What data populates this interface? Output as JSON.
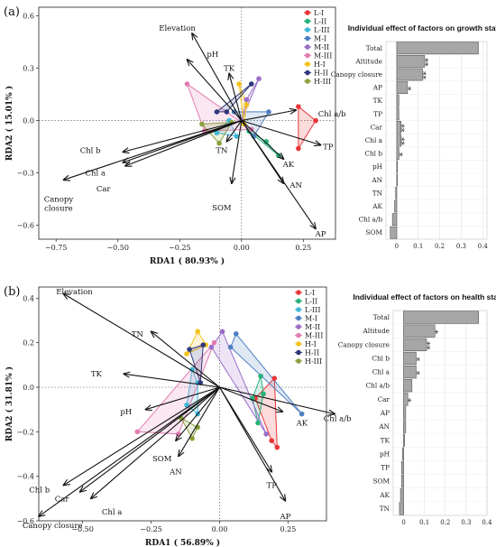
{
  "chart_data": [
    {
      "id": "a-rda",
      "type": "scatter",
      "panel_label": "(a)",
      "xlabel": "RDA1 ( 80.93% )",
      "ylabel": "RDA2 ( 15.01% )",
      "xlim": [
        -0.82,
        0.38
      ],
      "ylim": [
        -0.68,
        0.65
      ],
      "xticks": [
        -0.75,
        -0.5,
        -0.25,
        0.0,
        0.25
      ],
      "xtick_labels": [
        "−0.75",
        "−0.50",
        "−0.25",
        "0.00",
        "0.25"
      ],
      "yticks": [
        -0.6,
        -0.3,
        0.0,
        0.3,
        0.6
      ],
      "ytick_labels": [
        "−0.6",
        "−0.3",
        "0.0",
        "0.3",
        "0.6"
      ],
      "vectors": [
        {
          "label": "Elevation",
          "x": -0.2,
          "y": 0.5,
          "lx": -0.26,
          "ly": 0.53
        },
        {
          "label": "pH",
          "x": -0.22,
          "y": 0.35,
          "lx": -0.14,
          "ly": 0.38
        },
        {
          "label": "TK",
          "x": -0.05,
          "y": 0.27,
          "lx": -0.05,
          "ly": 0.3
        },
        {
          "label": "Chl a/b",
          "x": 0.22,
          "y": 0.06,
          "lx": 0.31,
          "ly": 0.04
        },
        {
          "label": "TP",
          "x": 0.32,
          "y": -0.14,
          "lx": 0.35,
          "ly": -0.15
        },
        {
          "label": "AK",
          "x": 0.17,
          "y": -0.22,
          "lx": 0.19,
          "ly": -0.25
        },
        {
          "label": "AN",
          "x": 0.17,
          "y": -0.36,
          "lx": 0.22,
          "ly": -0.37
        },
        {
          "label": "AP",
          "x": 0.3,
          "y": -0.62,
          "lx": 0.32,
          "ly": -0.65
        },
        {
          "label": "SOM",
          "x": -0.04,
          "y": -0.36,
          "lx": -0.08,
          "ly": -0.5
        },
        {
          "label": "TN",
          "x": -0.06,
          "y": -0.12,
          "lx": -0.08,
          "ly": -0.17
        },
        {
          "label": "Chl b",
          "x": -0.48,
          "y": -0.18,
          "lx": -0.57,
          "ly": -0.17
        },
        {
          "label": "Chl a",
          "x": -0.48,
          "y": -0.24,
          "lx": -0.55,
          "ly": -0.3
        },
        {
          "label": "Car",
          "x": -0.47,
          "y": -0.26,
          "lx": -0.53,
          "ly": -0.39
        },
        {
          "label": "Canopy closure",
          "x": -0.72,
          "y": -0.34,
          "lx": -0.74,
          "ly": -0.45
        }
      ],
      "groups": [
        {
          "name": "L-I",
          "color": "#e8353a",
          "points": [
            [
              0.3,
              0.0
            ],
            [
              0.23,
              -0.16
            ],
            [
              0.23,
              0.08
            ]
          ]
        },
        {
          "name": "L-II",
          "color": "#27b27a",
          "points": [
            [
              0.15,
              -0.2
            ],
            [
              0.1,
              -0.12
            ],
            [
              0.03,
              -0.06
            ]
          ]
        },
        {
          "name": "L-III",
          "color": "#3fb7d8",
          "points": [
            [
              -0.1,
              -0.07
            ],
            [
              -0.02,
              -0.09
            ],
            [
              -0.05,
              0.0
            ]
          ]
        },
        {
          "name": "M-I",
          "color": "#4f7fc2",
          "points": [
            [
              0.11,
              0.05
            ],
            [
              -0.03,
              0.05
            ],
            [
              0.05,
              -0.09
            ]
          ]
        },
        {
          "name": "M-II",
          "color": "#9a6ec8",
          "points": [
            [
              0.07,
              0.24
            ],
            [
              0.02,
              0.12
            ],
            [
              0.0,
              0.0
            ]
          ]
        },
        {
          "name": "M-III",
          "color": "#e27cb0",
          "points": [
            [
              -0.22,
              0.21
            ],
            [
              -0.15,
              -0.06
            ],
            [
              0.04,
              -0.05
            ]
          ]
        },
        {
          "name": "H-I",
          "color": "#f2c21a",
          "points": [
            [
              -0.01,
              0.21
            ],
            [
              0.02,
              0.09
            ],
            [
              0.01,
              -0.02
            ]
          ]
        },
        {
          "name": "H-II",
          "color": "#2f3779",
          "points": [
            [
              -0.1,
              0.05
            ],
            [
              -0.06,
              0.05
            ],
            [
              0.04,
              0.21
            ]
          ]
        },
        {
          "name": "H-III",
          "color": "#8aa03d",
          "points": [
            [
              -0.16,
              -0.02
            ],
            [
              -0.09,
              -0.13
            ],
            [
              -0.04,
              -0.01
            ]
          ]
        }
      ]
    },
    {
      "id": "a-bar",
      "type": "bar",
      "title": "Individual effect of  factors on growth status",
      "orientation": "horizontal",
      "categories": [
        "Total",
        "Altitude",
        "Canopy closure",
        "AP",
        "TK",
        "TP",
        "Car",
        "Chl a",
        "Chl b",
        "pH",
        "AN",
        "TN",
        "AK",
        "Chl a/b",
        "SOM"
      ],
      "values": [
        0.38,
        0.13,
        0.12,
        0.05,
        0.01,
        0.01,
        0.02,
        0.02,
        0.01,
        0.0,
        0.0,
        -0.005,
        -0.01,
        -0.02,
        -0.03
      ],
      "significance": [
        "",
        "**",
        "**",
        "*",
        "",
        "",
        "**",
        "**",
        "*",
        "",
        "",
        "",
        "",
        "",
        ""
      ],
      "xlim": [
        -0.05,
        0.42
      ],
      "xticks": [
        0,
        0.1,
        0.2,
        0.3,
        0.4
      ],
      "xtick_labels": [
        "0",
        "0.1",
        "0.2",
        "0.3",
        "0.4"
      ]
    },
    {
      "id": "b-rda",
      "type": "scatter",
      "panel_label": "(b)",
      "xlabel": "RDA1 ( 56.89% )",
      "ylabel": "RDA2 ( 31.81% )",
      "xlim": [
        -0.66,
        0.39
      ],
      "ylim": [
        -0.6,
        0.45
      ],
      "xticks": [
        -0.5,
        -0.25,
        0.0,
        0.25
      ],
      "xtick_labels": [
        "−0.50",
        "−0.25",
        "0.00",
        "0.25"
      ],
      "yticks": [
        -0.6,
        -0.4,
        -0.2,
        0.0,
        0.2,
        0.4
      ],
      "ytick_labels": [
        "−0.6",
        "−0.4",
        "−0.2",
        "0.0",
        "0.2",
        "0.4"
      ],
      "vectors": [
        {
          "label": "Elevation",
          "x": -0.57,
          "y": 0.42,
          "lx": -0.53,
          "ly": 0.43
        },
        {
          "label": "TN",
          "x": -0.25,
          "y": 0.25,
          "lx": -0.3,
          "ly": 0.24
        },
        {
          "label": "TK",
          "x": -0.35,
          "y": 0.06,
          "lx": -0.43,
          "ly": 0.06
        },
        {
          "label": "pH",
          "x": -0.27,
          "y": -0.1,
          "lx": -0.32,
          "ly": -0.11
        },
        {
          "label": "Chl a/b",
          "x": 0.42,
          "y": -0.12,
          "lx": 0.43,
          "ly": -0.14
        },
        {
          "label": "AK",
          "x": 0.23,
          "y": -0.11,
          "lx": 0.28,
          "ly": -0.16
        },
        {
          "label": "TP",
          "x": 0.19,
          "y": -0.38,
          "lx": 0.19,
          "ly": -0.44
        },
        {
          "label": "AP",
          "x": 0.24,
          "y": -0.51,
          "lx": 0.24,
          "ly": -0.58
        },
        {
          "label": "AN",
          "x": -0.15,
          "y": -0.31,
          "lx": -0.16,
          "ly": -0.38
        },
        {
          "label": "SOM",
          "x": -0.16,
          "y": -0.24,
          "lx": -0.21,
          "ly": -0.32
        },
        {
          "label": "Chl b",
          "x": -0.57,
          "y": -0.44,
          "lx": -0.62,
          "ly": -0.46
        },
        {
          "label": "Car",
          "x": -0.51,
          "y": -0.47,
          "lx": -0.55,
          "ly": -0.5
        },
        {
          "label": "Chl a",
          "x": -0.47,
          "y": -0.5,
          "lx": -0.43,
          "ly": -0.56
        },
        {
          "label": "Canopy closure",
          "x": -0.66,
          "y": -0.58,
          "lx": -0.61,
          "ly": -0.62
        }
      ],
      "groups": [
        {
          "name": "L-I",
          "color": "#e8353a",
          "points": [
            [
              0.21,
              -0.27
            ],
            [
              0.19,
              -0.24
            ],
            [
              0.13,
              -0.05
            ],
            [
              0.2,
              0.04
            ]
          ]
        },
        {
          "name": "L-II",
          "color": "#27b27a",
          "points": [
            [
              0.16,
              -0.03
            ],
            [
              0.14,
              -0.16
            ],
            [
              0.15,
              0.05
            ],
            [
              0.12,
              -0.05
            ]
          ]
        },
        {
          "name": "L-III",
          "color": "#3fb7d8",
          "points": [
            [
              -0.08,
              -0.12
            ],
            [
              -0.12,
              -0.08
            ],
            [
              -0.1,
              0.08
            ],
            [
              -0.08,
              0.02
            ]
          ]
        },
        {
          "name": "M-I",
          "color": "#4f7fc2",
          "points": [
            [
              0.06,
              0.24
            ],
            [
              0.3,
              -0.12
            ],
            [
              0.04,
              0.18
            ]
          ]
        },
        {
          "name": "M-II",
          "color": "#9a6ec8",
          "points": [
            [
              0.17,
              -0.21
            ],
            [
              -0.03,
              0.18
            ],
            [
              0.01,
              0.25
            ]
          ]
        },
        {
          "name": "M-III",
          "color": "#e27cb0",
          "points": [
            [
              -0.3,
              -0.2
            ],
            [
              -0.15,
              -0.21
            ],
            [
              -0.02,
              0.2
            ]
          ]
        },
        {
          "name": "H-I",
          "color": "#f2c21a",
          "points": [
            [
              -0.12,
              0.15
            ],
            [
              -0.05,
              0.19
            ],
            [
              -0.08,
              0.25
            ]
          ]
        },
        {
          "name": "H-II",
          "color": "#2f3779",
          "points": [
            [
              -0.11,
              0.17
            ],
            [
              -0.06,
              0.19
            ],
            [
              -0.07,
              0.02
            ]
          ]
        },
        {
          "name": "H-III",
          "color": "#8aa03d",
          "points": [
            [
              -0.14,
              -0.14
            ],
            [
              -0.08,
              -0.18
            ],
            [
              -0.1,
              -0.23
            ]
          ]
        }
      ]
    },
    {
      "id": "b-bar",
      "type": "bar",
      "title": "Individual effect of  factors on health status",
      "orientation": "horizontal",
      "categories": [
        "Total",
        "Altitude",
        "Canopy closure",
        "Chl b",
        "Chl a",
        "Chl a/b",
        "Car",
        "AP",
        "AN",
        "TK",
        "pH",
        "TP",
        "SOM",
        "AK",
        "TN"
      ],
      "values": [
        0.36,
        0.15,
        0.11,
        0.06,
        0.06,
        0.04,
        0.02,
        0.01,
        0.01,
        0.005,
        -0.005,
        -0.01,
        -0.01,
        -0.015,
        -0.02
      ],
      "significance": [
        "",
        "*",
        "**",
        "*",
        "*",
        "",
        "*",
        "",
        "",
        "",
        "",
        "",
        "",
        "",
        ""
      ],
      "xlim": [
        -0.05,
        0.4
      ],
      "xticks": [
        0,
        0.1,
        0.2,
        0.3,
        0.4
      ],
      "xtick_labels": [
        "0",
        "0.1",
        "0.2",
        "0.3",
        "0.4"
      ]
    }
  ]
}
